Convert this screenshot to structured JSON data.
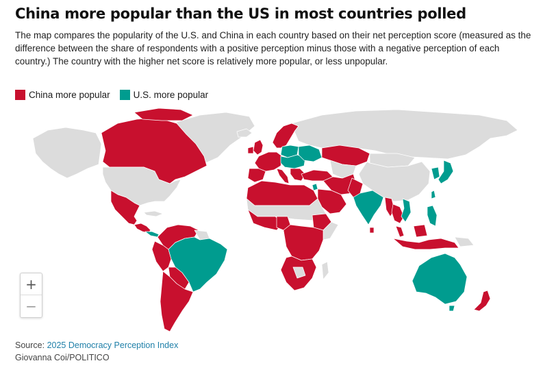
{
  "header": {
    "title": "China more popular than the US in most countries polled",
    "subtitle": "The map compares the popularity of the U.S. and China in each country based on their net perception score (measured as the difference between the share of respondents with a positive perception minus those with a negative perception of each country.) The country with the higher net score is relatively more popular, or less unpopular."
  },
  "legend": {
    "items": [
      {
        "label": "China more popular",
        "color": "#c8102e"
      },
      {
        "label": "U.S. more popular",
        "color": "#009c8f"
      }
    ],
    "no_data_color": "#dcdcdc"
  },
  "map": {
    "china_more_popular": [
      "Canada",
      "Mexico",
      "Guatemala",
      "Honduras",
      "Nicaragua",
      "Colombia",
      "Venezuela",
      "Ecuador",
      "Peru",
      "Bolivia",
      "Chile",
      "Argentina",
      "Uruguay",
      "United Kingdom",
      "Ireland",
      "Spain",
      "Portugal",
      "France",
      "Belgium",
      "Netherlands",
      "Germany",
      "Switzerland",
      "Austria",
      "Italy",
      "Norway",
      "Sweden",
      "Denmark",
      "Finland",
      "Greece",
      "Turkey",
      "Morocco",
      "Algeria",
      "Tunisia",
      "Libya",
      "Egypt",
      "Saudi Arabia",
      "Iraq",
      "Iran",
      "Kazakhstan",
      "Pakistan",
      "Nigeria",
      "Ghana",
      "Senegal",
      "Ethiopia",
      "Kenya",
      "Tanzania",
      "Uganda",
      "DR Congo",
      "Angola",
      "Zambia",
      "Zimbabwe",
      "Mozambique",
      "South Africa",
      "Malaysia",
      "Indonesia",
      "Thailand",
      "Cambodia",
      "Singapore",
      "Myanmar",
      "Sri Lanka",
      "New Zealand"
    ],
    "us_more_popular": [
      "Brazil",
      "Costa Rica",
      "Panama",
      "Poland",
      "Ukraine",
      "Hungary",
      "Romania",
      "Czechia",
      "Lithuania",
      "Israel",
      "India",
      "Japan",
      "South Korea",
      "Taiwan",
      "Vietnam",
      "Philippines",
      "Australia"
    ]
  },
  "controls": {
    "zoom_in": "+",
    "zoom_out": "−"
  },
  "footer": {
    "source_prefix": "Source: ",
    "source_link": "2025 Democracy Perception Index",
    "credit": "Giovanna Coi/POLITICO"
  }
}
